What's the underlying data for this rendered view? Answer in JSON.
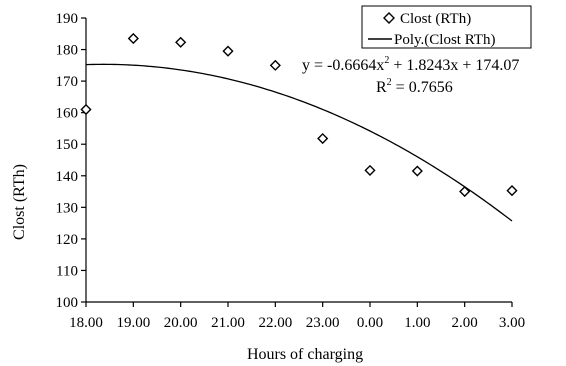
{
  "chart_data": {
    "type": "scatter",
    "title": "",
    "xlabel": "Hours of charging",
    "ylabel": "Clost (RTh)",
    "categories": [
      "18.00",
      "19.00",
      "20.00",
      "21.00",
      "22.00",
      "23.00",
      "0.00",
      "1.00",
      "2.00",
      "3.00"
    ],
    "ylim": [
      100,
      190
    ],
    "yticks": [
      "100",
      "110",
      "120",
      "130",
      "140",
      "150",
      "160",
      "170",
      "180",
      "190"
    ],
    "series": [
      {
        "name": "Clost (RTh)",
        "marker": "diamond",
        "values": [
          161,
          183.5,
          182.3,
          179.5,
          175,
          151.8,
          141.7,
          141.5,
          135,
          135.3
        ]
      },
      {
        "name": "Poly.(Clost RTh)",
        "type": "line",
        "polynomial": {
          "a": -0.6664,
          "b": 1.8243,
          "c": 174.07
        }
      }
    ],
    "annotation": {
      "equation_lhs": "y = -0.6664x",
      "equation_exp": "2",
      "equation_rhs": " + 1.8243x + 174.07",
      "r2_lhs": "R",
      "r2_exp": "2",
      "r2_rhs": " = 0.7656"
    },
    "legend_placement": "top-right",
    "grid": false,
    "colors": {
      "marker": "#000000",
      "line": "#000000"
    }
  }
}
